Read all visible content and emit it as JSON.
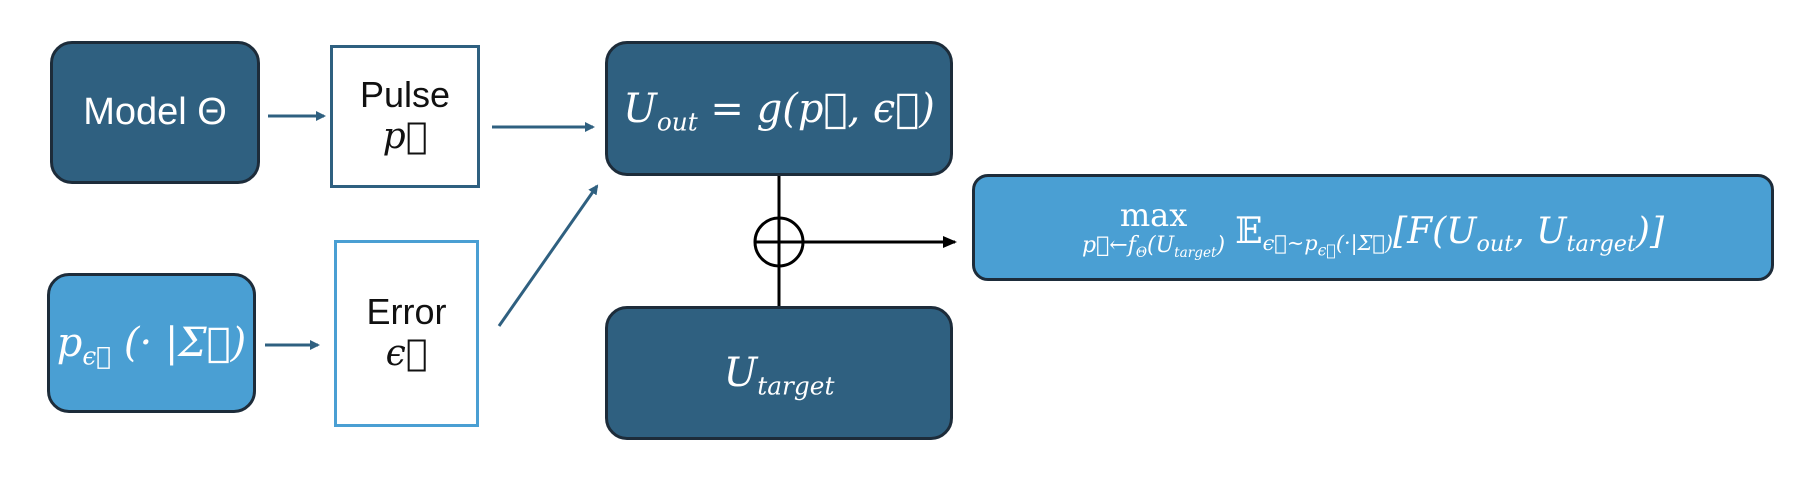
{
  "nodes": {
    "model": {
      "label": "Model Θ"
    },
    "pulse": {
      "label": "Pulse",
      "symbol": "p⃗"
    },
    "noise_dist": {
      "symbol": "p",
      "subscript": "ϵ⃗",
      "args": "(· |Σ⃗)"
    },
    "error": {
      "label": "Error",
      "symbol": "ϵ⃗"
    },
    "u_out": {
      "lhs": "U",
      "lhs_sub": "out",
      "rhs": "= g(p⃗, ϵ⃗)"
    },
    "u_target": {
      "symbol": "U",
      "subscript": "target"
    },
    "objective": {
      "max": "max",
      "max_sub": "p⃗←f",
      "max_sub2": "Θ",
      "max_sub3": "(U",
      "max_sub4": "target",
      "max_sub5": ")",
      "expect": "𝔼",
      "expect_sub": "ϵ⃗∼p",
      "expect_sub2": "ϵ⃗",
      "expect_sub3": "(·|Σ⃗)",
      "body_open": "[F(U",
      "body_sub1": "out",
      "body_mid": ", U",
      "body_sub2": "target",
      "body_close": ")]"
    }
  },
  "colors": {
    "dark_fill": "#2f6080",
    "light_fill": "#4a9fd3",
    "border": "#1d2c3a",
    "arrow": "#2f6080"
  }
}
